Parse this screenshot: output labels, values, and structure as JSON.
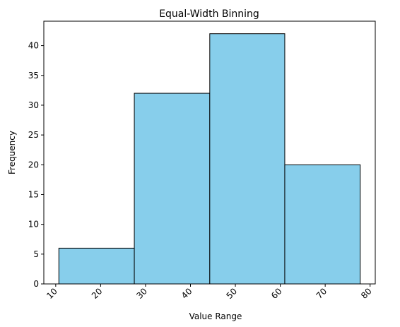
{
  "chart_data": {
    "type": "bar",
    "title": "Equal-Width Binning",
    "xlabel": "Value Range",
    "ylabel": "Frequency",
    "bins": [
      {
        "start": 10.7,
        "end": 27.5,
        "count": 6
      },
      {
        "start": 27.5,
        "end": 44.3,
        "count": 32
      },
      {
        "start": 44.3,
        "end": 61.0,
        "count": 42
      },
      {
        "start": 61.0,
        "end": 77.8,
        "count": 20
      }
    ],
    "xlim": [
      7.35,
      81.15
    ],
    "ylim": [
      0,
      44.1
    ],
    "xticks": [
      "10",
      "20",
      "30",
      "40",
      "50",
      "60",
      "70",
      "80"
    ],
    "yticks": [
      "0",
      "5",
      "10",
      "15",
      "20",
      "25",
      "30",
      "35",
      "40"
    ],
    "bar_color": "#87ceeb",
    "edge_color": "#000000",
    "grid": false,
    "x_tick_rotation": 45
  }
}
